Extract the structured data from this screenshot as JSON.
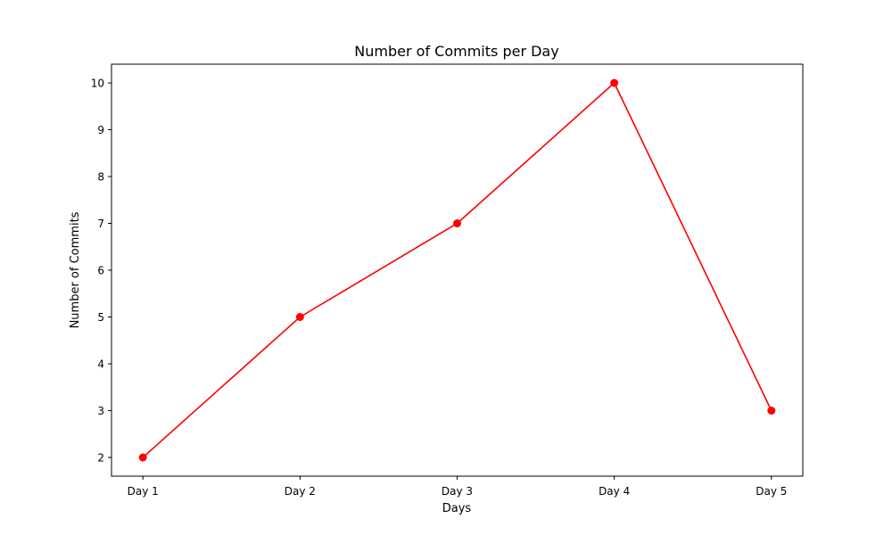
{
  "chart_data": {
    "type": "line",
    "title": "Number of Commits per Day",
    "xlabel": "Days",
    "ylabel": "Number of Commits",
    "categories": [
      "Day 1",
      "Day 2",
      "Day 3",
      "Day 4",
      "Day 5"
    ],
    "series": [
      {
        "values": [
          2,
          5,
          7,
          10,
          3
        ],
        "color": "#ff0000",
        "marker": "circle"
      }
    ],
    "ylim": [
      1.6,
      10.4
    ],
    "yticks": [
      2,
      3,
      4,
      5,
      6,
      7,
      8,
      9,
      10
    ],
    "grid": false,
    "legend": false
  }
}
